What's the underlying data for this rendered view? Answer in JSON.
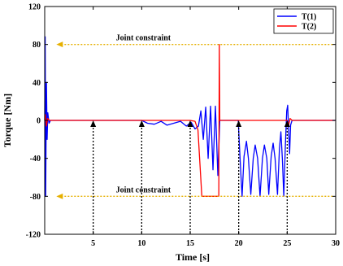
{
  "chart_data": {
    "type": "line",
    "xlabel": "Time [s]",
    "ylabel": "Torque [Nm]",
    "xlim": [
      0,
      30
    ],
    "ylim": [
      -120,
      120
    ],
    "xticks": [
      5,
      10,
      15,
      20,
      25,
      30
    ],
    "yticks": [
      -120,
      -80,
      -40,
      0,
      40,
      80,
      120
    ],
    "grid": false,
    "legend_position": "top-right",
    "series": [
      {
        "name": "T(1)",
        "color": "#0000ff",
        "points": [
          [
            0.0,
            0
          ],
          [
            0.05,
            88
          ],
          [
            0.1,
            -80
          ],
          [
            0.18,
            40
          ],
          [
            0.25,
            -20
          ],
          [
            0.32,
            8
          ],
          [
            0.45,
            -3
          ],
          [
            0.6,
            0
          ],
          [
            10.0,
            0
          ],
          [
            10.6,
            -3
          ],
          [
            11.3,
            -4
          ],
          [
            12.0,
            -1
          ],
          [
            12.6,
            -5
          ],
          [
            13.3,
            -3
          ],
          [
            14.0,
            -1
          ],
          [
            14.6,
            -6
          ],
          [
            15.1,
            -2
          ],
          [
            15.5,
            -9
          ],
          [
            15.85,
            -6
          ],
          [
            16.1,
            10
          ],
          [
            16.35,
            -20
          ],
          [
            16.6,
            14
          ],
          [
            16.85,
            -40
          ],
          [
            17.1,
            15
          ],
          [
            17.35,
            -52
          ],
          [
            17.6,
            15
          ],
          [
            17.85,
            -58
          ],
          [
            18.05,
            0
          ],
          [
            18.1,
            0
          ],
          [
            19.95,
            0
          ],
          [
            20.15,
            -42
          ],
          [
            20.35,
            -80
          ],
          [
            20.55,
            -38
          ],
          [
            20.8,
            -22
          ],
          [
            21.0,
            -40
          ],
          [
            21.25,
            -78
          ],
          [
            21.5,
            -40
          ],
          [
            21.7,
            -26
          ],
          [
            21.95,
            -40
          ],
          [
            22.2,
            -80
          ],
          [
            22.45,
            -40
          ],
          [
            22.65,
            -26
          ],
          [
            22.9,
            -40
          ],
          [
            23.1,
            -78
          ],
          [
            23.35,
            -38
          ],
          [
            23.55,
            -24
          ],
          [
            23.75,
            -40
          ],
          [
            24.0,
            -78
          ],
          [
            24.2,
            -30
          ],
          [
            24.35,
            -12
          ],
          [
            24.5,
            -40
          ],
          [
            24.65,
            -80
          ],
          [
            24.8,
            -30
          ],
          [
            24.95,
            10
          ],
          [
            25.05,
            16
          ],
          [
            25.15,
            -10
          ],
          [
            25.25,
            -35
          ],
          [
            25.35,
            -5
          ],
          [
            25.5,
            0
          ],
          [
            30.0,
            0
          ]
        ]
      },
      {
        "name": "T(2)",
        "color": "#ff0000",
        "points": [
          [
            0.0,
            0
          ],
          [
            0.08,
            6
          ],
          [
            0.18,
            -6
          ],
          [
            0.3,
            2
          ],
          [
            0.5,
            0
          ],
          [
            15.0,
            0
          ],
          [
            15.5,
            -1
          ],
          [
            15.8,
            -10
          ],
          [
            16.0,
            -45
          ],
          [
            16.2,
            -80
          ],
          [
            17.95,
            -80
          ],
          [
            18.0,
            80
          ],
          [
            18.05,
            0
          ],
          [
            25.0,
            0
          ],
          [
            25.15,
            -5
          ],
          [
            25.3,
            2
          ],
          [
            25.5,
            0
          ],
          [
            30.0,
            0
          ]
        ]
      }
    ],
    "reference_lines": [
      {
        "y": 80,
        "color": "#e6b000",
        "label": "Joint constraint"
      },
      {
        "y": -80,
        "color": "#e6b000",
        "label": "Joint constraint"
      }
    ],
    "marker_arrows_x": [
      5,
      10,
      15,
      20,
      25
    ]
  }
}
